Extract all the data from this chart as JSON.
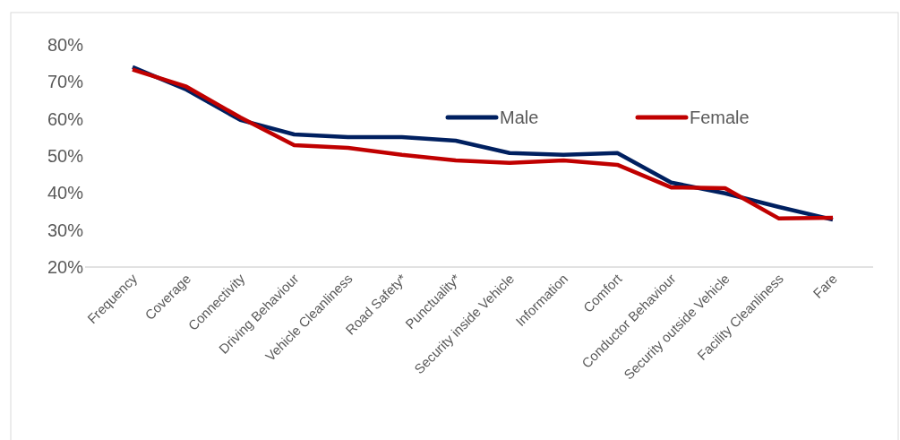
{
  "chart_data": {
    "type": "line",
    "categories": [
      "Frequency",
      "Coverage",
      "Connectivity",
      "Driving Behaviour",
      "Vehicle Cleanliness",
      "Road Safety*",
      "Punctuality*",
      "Security inside Vehicle",
      "Information",
      "Comfort",
      "Conductor Behaviour",
      "Security outside Vehicle",
      "Facility Cleanliness",
      "Fare"
    ],
    "series": [
      {
        "name": "Male",
        "color": "#002060",
        "values": [
          74,
          67.9,
          59.7,
          55.8,
          55.1,
          55.1,
          54.1,
          50.8,
          50.3,
          50.8,
          42.8,
          39.9,
          36.2,
          32.8
        ]
      },
      {
        "name": "Female",
        "color": "#c00000",
        "values": [
          73.3,
          68.7,
          60.4,
          52.9,
          52.2,
          50.3,
          48.8,
          48.1,
          48.8,
          47.6,
          41.5,
          41.3,
          33.1,
          33.3
        ]
      }
    ],
    "ylim": [
      20,
      80
    ],
    "yticks": [
      {
        "value": 20,
        "label": "20%"
      },
      {
        "value": 30,
        "label": "30%"
      },
      {
        "value": 40,
        "label": "40%"
      },
      {
        "value": 50,
        "label": "50%"
      },
      {
        "value": 60,
        "label": "60%"
      },
      {
        "value": 70,
        "label": "70%"
      },
      {
        "value": 80,
        "label": "80%"
      }
    ],
    "legend": "top",
    "grid": false,
    "marker": "none",
    "line_style": "solid"
  }
}
